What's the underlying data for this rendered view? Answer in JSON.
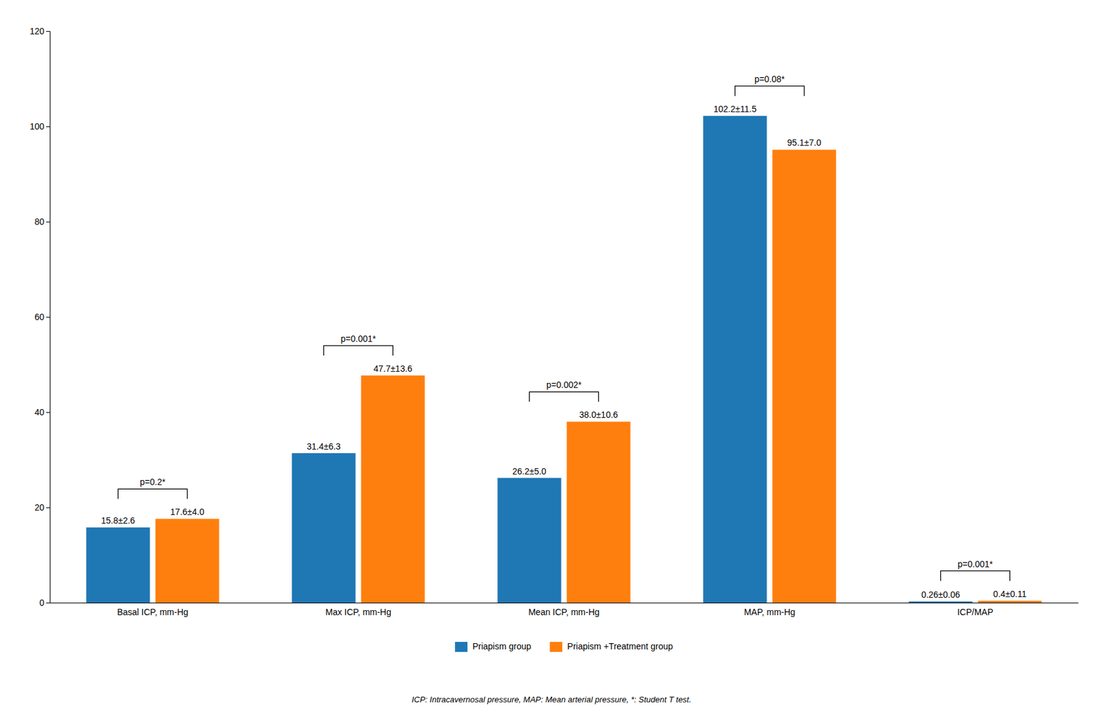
{
  "chart_data": {
    "type": "bar",
    "categories": [
      "Basal ICP, mm-Hg",
      "Max ICP, mm-Hg",
      "Mean ICP, mm-Hg",
      "MAP, mm-Hg",
      "ICP/MAP"
    ],
    "series": [
      {
        "name": "Priapism group",
        "values": [
          15.8,
          31.4,
          26.2,
          102.2,
          0.26
        ],
        "value_labels": [
          "15.8±2.6",
          "31.4±6.3",
          "26.2±5.0",
          "102.2±11.5",
          "0.26±0.06"
        ]
      },
      {
        "name": "Priapism +Treatment group",
        "values": [
          17.6,
          47.7,
          38.0,
          95.1,
          0.4
        ],
        "value_labels": [
          "17.6±4.0",
          "47.7±13.6",
          "38.0±10.6",
          "95.1±7.0",
          "0.4±0.11"
        ]
      }
    ],
    "annotations": [
      "p=0.2*",
      "p=0.001*",
      "p=0.002*",
      "p=0.08*",
      "p=0.001*"
    ],
    "footnote": "ICP: Intracavernosal pressure, MAP: Mean arterial pressure, *: Student T test.",
    "ylim": [
      0,
      120
    ],
    "yticks": [
      0,
      20,
      40,
      60,
      80,
      100,
      120
    ],
    "data_labels": true,
    "grid": false,
    "legend": "bottom"
  }
}
